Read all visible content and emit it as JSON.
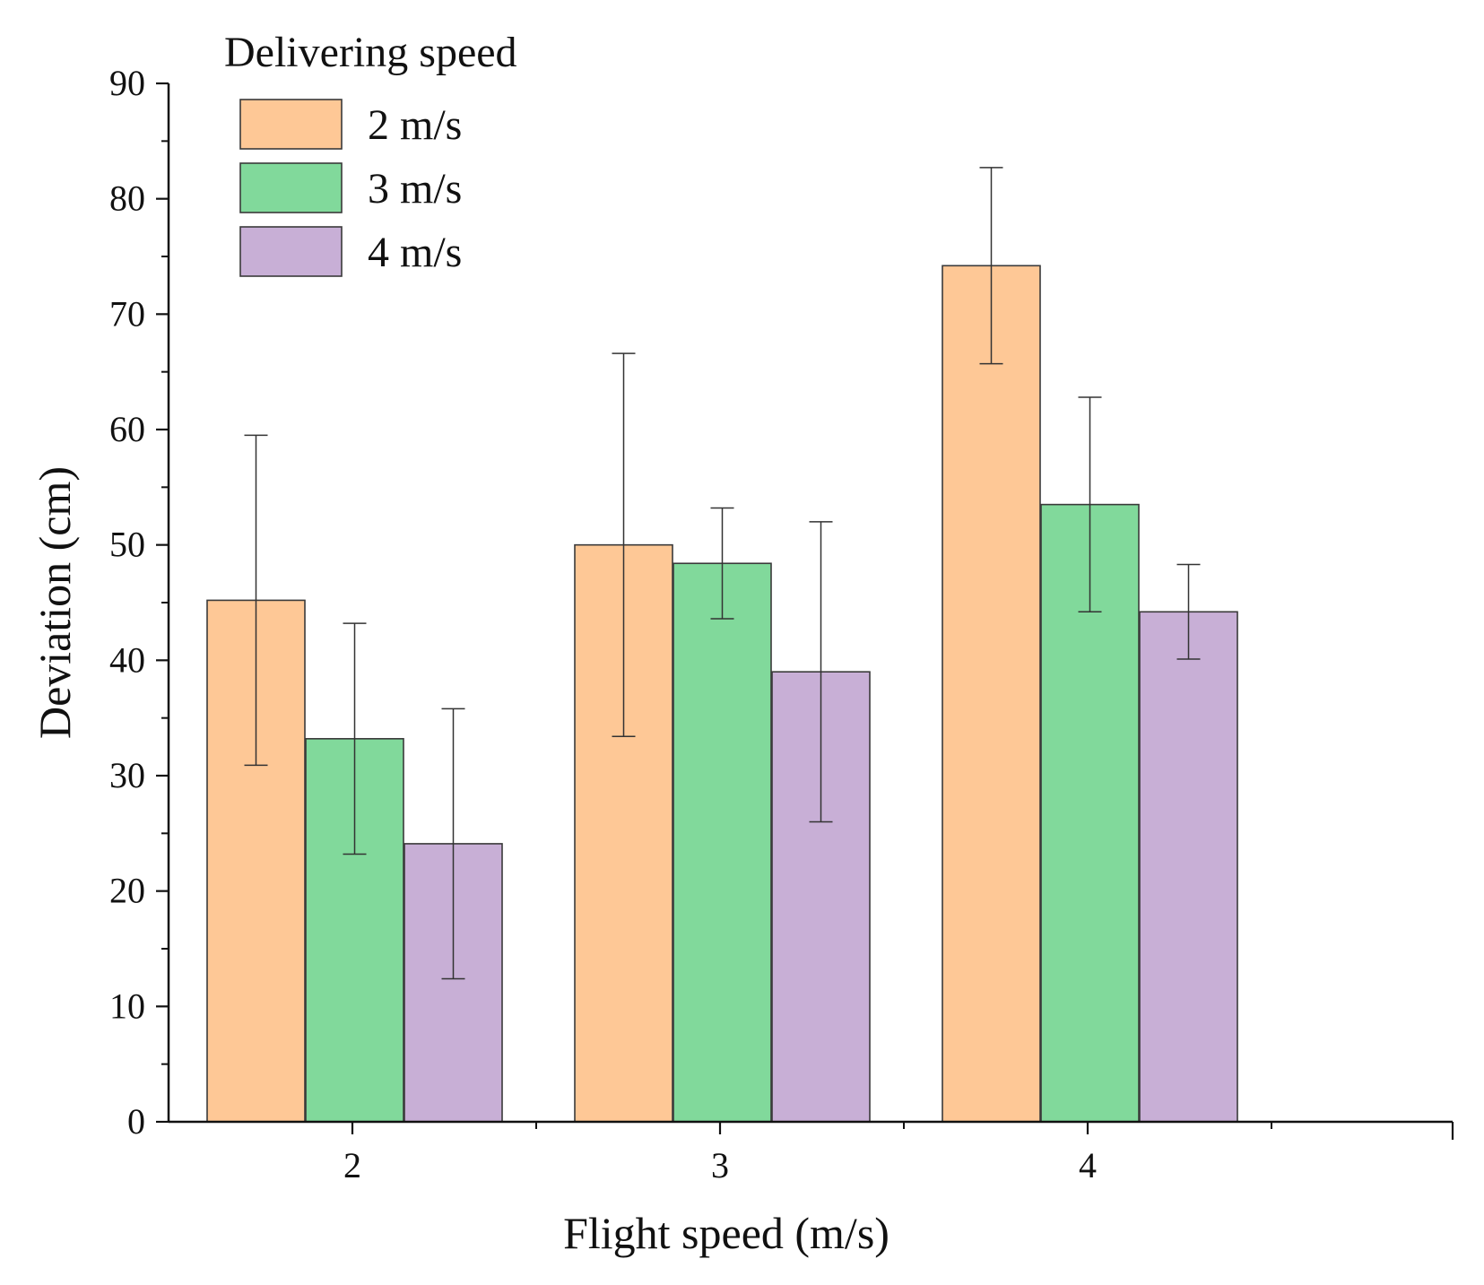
{
  "chart_data": {
    "type": "bar",
    "title": "",
    "xlabel": "Flight speed (m/s)",
    "ylabel": "Deviation (cm)",
    "categories": [
      "2",
      "3",
      "4"
    ],
    "ylim": [
      0,
      90
    ],
    "yticks": [
      0,
      10,
      20,
      30,
      40,
      50,
      60,
      70,
      80,
      90
    ],
    "grid": false,
    "legend": {
      "title": "Delivering speed",
      "placement": "top-left"
    },
    "series": [
      {
        "name": "2 m/s",
        "color": "#fec896",
        "values": [
          45.2,
          50.0,
          74.2
        ],
        "errors": [
          14.3,
          16.6,
          8.5
        ]
      },
      {
        "name": "3 m/s",
        "color": "#81d99b",
        "values": [
          33.2,
          48.4,
          53.5
        ],
        "errors": [
          10.0,
          4.8,
          9.3
        ]
      },
      {
        "name": "4 m/s",
        "color": "#c8afd6",
        "values": [
          24.1,
          39.0,
          44.2
        ],
        "errors": [
          11.7,
          13.0,
          4.1
        ]
      }
    ]
  }
}
